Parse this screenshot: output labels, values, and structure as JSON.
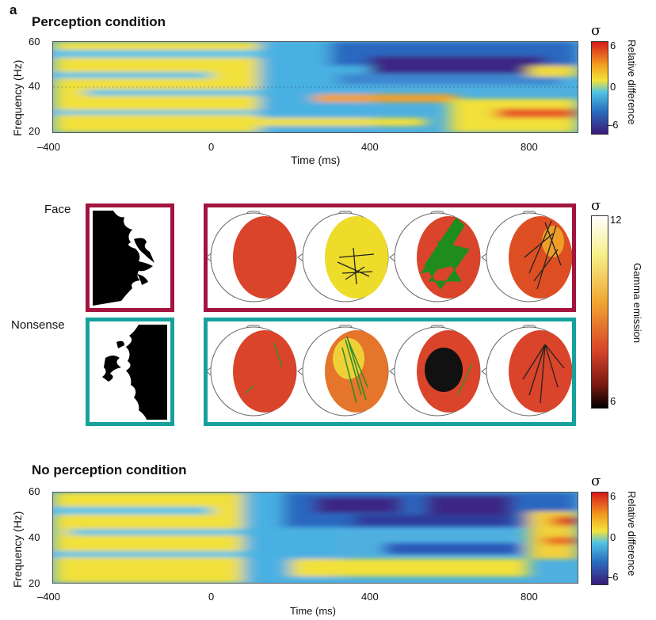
{
  "panel_label": "a",
  "top_panel": {
    "title": "Perception condition",
    "ylabel": "Frequency (Hz)",
    "xlabel": "Time (ms)",
    "y_ticks": [
      "60",
      "40",
      "20"
    ],
    "x_ticks": [
      "–400",
      "0",
      "400",
      "800"
    ],
    "colorbar": {
      "symbol": "σ",
      "label": "Relative difference",
      "ticks": [
        "6",
        "0",
        "–6"
      ]
    }
  },
  "middle_panel": {
    "rows": [
      {
        "label": "Face",
        "frame_color": "#a3143f",
        "head_fills": [
          "#d9442a",
          "#eedc2a",
          "#d9442a",
          "#dd4f22"
        ],
        "line_colors": [
          "none",
          "#222222",
          "#1f8c1f",
          "#222222"
        ]
      },
      {
        "label": "Nonsense",
        "frame_color": "#17a19c",
        "head_fills": [
          "#d9442a",
          "#e4752a",
          "#111111",
          "#d9442a"
        ],
        "line_colors": [
          "#3a8c2a",
          "#2a8c2a",
          "#3a8c2a",
          "#222222"
        ]
      }
    ],
    "colorbar": {
      "symbol": "σ",
      "label": "Gamma emission",
      "ticks": [
        "12",
        "6"
      ]
    }
  },
  "bottom_panel": {
    "title": "No perception condition",
    "ylabel": "Frequency (Hz)",
    "xlabel": "Time (ms)",
    "y_ticks": [
      "60",
      "40",
      "20"
    ],
    "x_ticks": [
      "–400",
      "0",
      "400",
      "800"
    ],
    "colorbar": {
      "symbol": "σ",
      "label": "Relative difference",
      "ticks": [
        "6",
        "0",
        "–6"
      ]
    }
  }
}
